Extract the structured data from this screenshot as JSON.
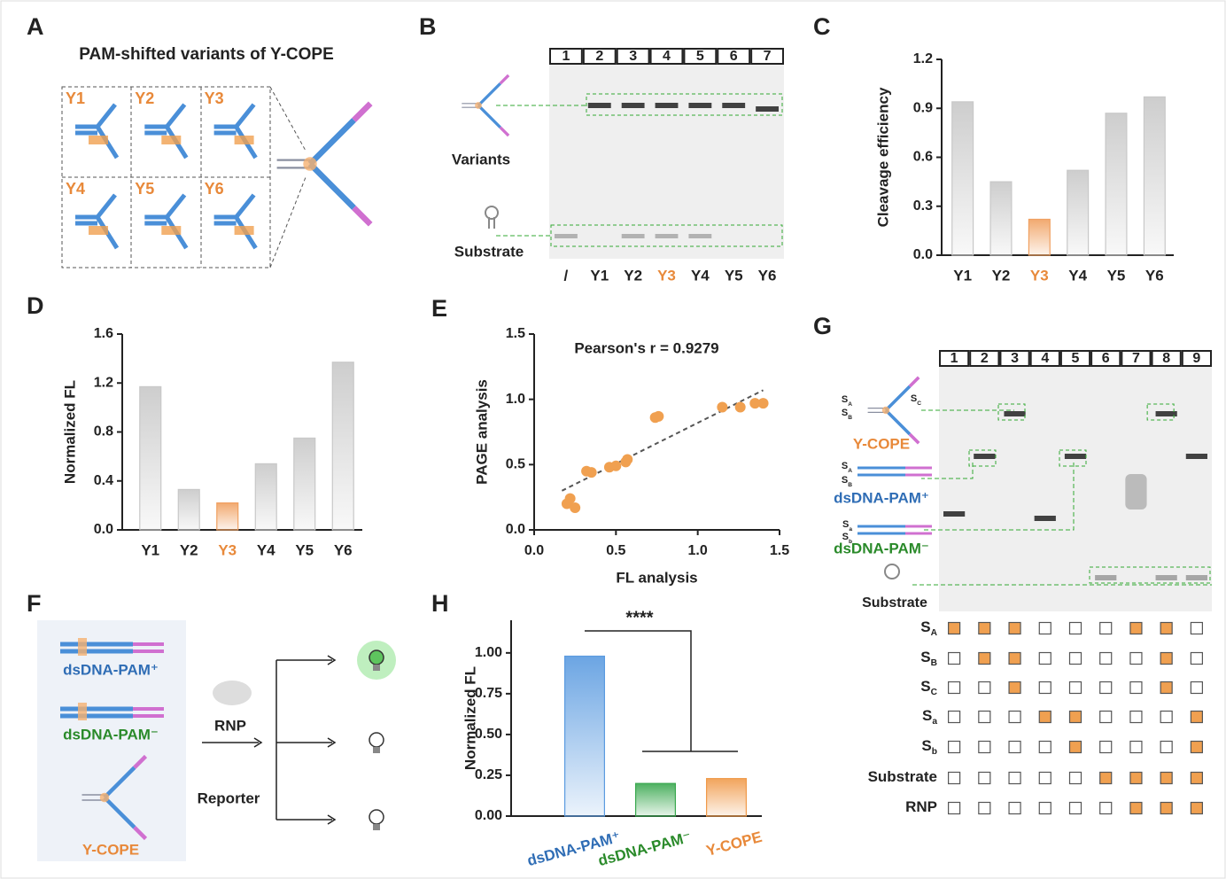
{
  "panel_labels": [
    "A",
    "B",
    "C",
    "D",
    "E",
    "F",
    "G",
    "H"
  ],
  "panel_a": {
    "title": "PAM-shifted variants of Y-COPE",
    "variants": [
      "Y1",
      "Y2",
      "Y3",
      "Y4",
      "Y5",
      "Y6"
    ]
  },
  "panel_b": {
    "lanes": [
      "1",
      "2",
      "3",
      "4",
      "5",
      "6",
      "7"
    ],
    "bands": [
      "Variants",
      "Substrate"
    ],
    "samples": [
      "/",
      "Y1",
      "Y2",
      "Y3",
      "Y4",
      "Y5",
      "Y6"
    ],
    "sample_colors": [
      "#222222",
      "#222222",
      "#222222",
      "#e8893a",
      "#222222",
      "#222222",
      "#222222"
    ]
  },
  "panel_f": {
    "inputs": [
      "dsDNA-PAM⁺",
      "dsDNA-PAM⁻",
      "Y-COPE"
    ],
    "input_colors": [
      "#2f6db5",
      "#2a8a2a",
      "#e8893a"
    ],
    "reagents": [
      "RNP",
      "Reporter"
    ]
  },
  "panel_g": {
    "lanes": [
      "1",
      "2",
      "3",
      "4",
      "5",
      "6",
      "7",
      "8",
      "9"
    ],
    "species": [
      "Y-COPE",
      "dsDNA-PAM⁺",
      "dsDNA-PAM⁻",
      "Substrate"
    ],
    "species_colors": [
      "#e8893a",
      "#2f6db5",
      "#2a8a2a",
      "#222222"
    ],
    "rows": [
      {
        "symbol": "S",
        "sub": "A",
        "included": [
          true,
          true,
          true,
          false,
          false,
          false,
          true,
          true,
          false
        ]
      },
      {
        "symbol": "S",
        "sub": "B",
        "included": [
          false,
          true,
          true,
          false,
          false,
          false,
          false,
          true,
          false
        ]
      },
      {
        "symbol": "S",
        "sub": "C",
        "included": [
          false,
          false,
          true,
          false,
          false,
          false,
          false,
          true,
          false
        ]
      },
      {
        "symbol": "S",
        "sub": "a",
        "included": [
          false,
          false,
          false,
          true,
          true,
          false,
          false,
          false,
          true
        ]
      },
      {
        "symbol": "S",
        "sub": "b",
        "included": [
          false,
          false,
          false,
          false,
          true,
          false,
          false,
          false,
          true
        ]
      },
      {
        "symbol": "Substrate",
        "included": [
          false,
          false,
          false,
          false,
          false,
          true,
          true,
          true,
          true
        ]
      },
      {
        "symbol": "RNP",
        "included": [
          false,
          false,
          false,
          false,
          false,
          false,
          true,
          true,
          true
        ]
      }
    ]
  },
  "chart_data": [
    {
      "type": "bar",
      "ylabel": "Cleavage efficiency",
      "categories": [
        "Y1",
        "Y2",
        "Y3",
        "Y4",
        "Y5",
        "Y6"
      ],
      "values": [
        0.94,
        0.45,
        0.22,
        0.52,
        0.87,
        0.97
      ],
      "colors": [
        "#c8c8c8",
        "#c8c8c8",
        "#f0a060",
        "#c8c8c8",
        "#c8c8c8",
        "#c8c8c8"
      ],
      "category_colors": [
        "#222222",
        "#222222",
        "#e8893a",
        "#222222",
        "#222222",
        "#222222"
      ],
      "ylim": [
        0,
        1.2
      ],
      "yticks": [
        {
          "value": 0,
          "label": "0.0"
        },
        0.3,
        0.6,
        0.9,
        1.2
      ]
    },
    {
      "type": "bar",
      "ylabel": "Normalized FL",
      "categories": [
        "Y1",
        "Y2",
        "Y3",
        "Y4",
        "Y5",
        "Y6"
      ],
      "values": [
        1.17,
        0.33,
        0.22,
        0.54,
        0.75,
        1.37
      ],
      "colors": [
        "#c8c8c8",
        "#c8c8c8",
        "#f0a060",
        "#c8c8c8",
        "#c8c8c8",
        "#c8c8c8"
      ],
      "category_colors": [
        "#222222",
        "#222222",
        "#e8893a",
        "#222222",
        "#222222",
        "#222222"
      ],
      "ylim": [
        0,
        1.6
      ],
      "yticks": [
        {
          "value": 0,
          "label": "0.0"
        },
        0.4,
        0.8,
        1.2,
        1.6
      ]
    },
    {
      "type": "scatter",
      "annotation": "Pearson's r = 0.9279",
      "xlabel": "FL analysis",
      "ylabel": "PAGE analysis",
      "x": [
        0.2,
        0.25,
        0.22,
        0.32,
        0.35,
        0.46,
        0.5,
        0.56,
        0.57,
        0.74,
        0.76,
        1.15,
        1.26,
        1.35,
        1.4
      ],
      "y": [
        0.2,
        0.17,
        0.24,
        0.45,
        0.44,
        0.48,
        0.49,
        0.52,
        0.54,
        0.86,
        0.87,
        0.94,
        0.94,
        0.97,
        0.97
      ],
      "color": "#f0a050",
      "fit": {
        "x": [
          0.17,
          1.4
        ],
        "y": [
          0.3,
          1.07
        ]
      },
      "xlim": [
        0,
        1.5
      ],
      "ylim": [
        0,
        1.5
      ],
      "xticks": [
        {
          "value": 0,
          "label": "0.0"
        },
        0.5,
        {
          "value": 1,
          "label": "1.0"
        },
        1.5
      ],
      "yticks": [
        {
          "value": 0,
          "label": "0.0"
        },
        0.5,
        {
          "value": 1,
          "label": "1.0"
        },
        1.5
      ]
    },
    {
      "type": "bar",
      "ylabel": "Normalized FL",
      "categories": [
        "dsDNA-PAM⁺",
        "dsDNA-PAM⁻",
        "Y-COPE"
      ],
      "values": [
        0.98,
        0.2,
        0.23
      ],
      "colors": [
        "#5b9be0",
        "#3aa84f",
        "#f09a4a"
      ],
      "category_colors": [
        "#2f6db5",
        "#2a8a2a",
        "#e8893a"
      ],
      "annotation": "****",
      "ylim": [
        0,
        1.2
      ],
      "yticks": [
        {
          "value": 0,
          "label": "0.00"
        },
        {
          "value": 0.25,
          "label": "0.25"
        },
        {
          "value": 0.5,
          "label": "0.50"
        },
        {
          "value": 0.75,
          "label": "0.75"
        },
        {
          "value": 1,
          "label": "1.00"
        }
      ]
    }
  ]
}
